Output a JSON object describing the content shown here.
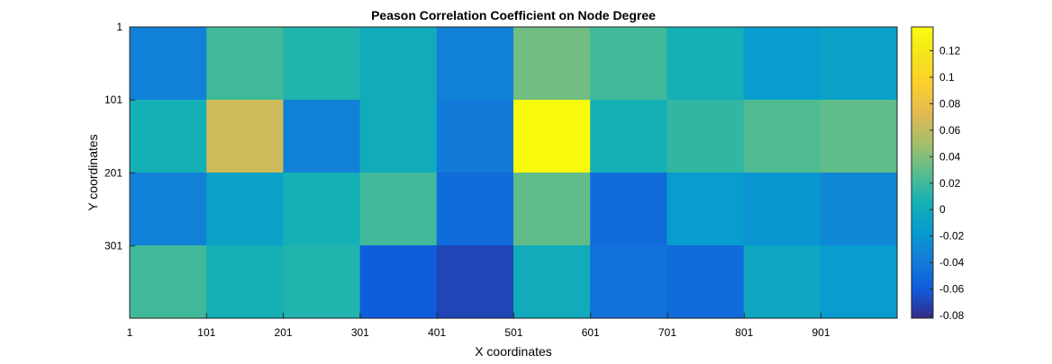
{
  "chart_data": {
    "type": "heatmap",
    "title": "Peason Correlation Coefficient on Node Degree",
    "xlabel": "X coordinates",
    "ylabel": "Y coordinates",
    "x_tick_labels": [
      "1",
      "101",
      "201",
      "301",
      "401",
      "501",
      "601",
      "701",
      "801",
      "901"
    ],
    "y_tick_labels": [
      "1",
      "101",
      "201",
      "301"
    ],
    "x_range": [
      1,
      1000
    ],
    "y_range": [
      1,
      400
    ],
    "cell_size": 100,
    "values": [
      [
        -0.035,
        0.02,
        0.01,
        0.0,
        -0.035,
        0.035,
        0.02,
        0.005,
        -0.015,
        -0.01
      ],
      [
        0.005,
        0.065,
        -0.035,
        0.0,
        -0.04,
        0.138,
        0.005,
        0.015,
        0.025,
        0.03
      ],
      [
        -0.035,
        -0.01,
        0.005,
        0.02,
        -0.05,
        0.03,
        -0.05,
        -0.015,
        -0.02,
        -0.03
      ],
      [
        0.02,
        0.005,
        0.01,
        -0.06,
        -0.07,
        0.0,
        -0.045,
        -0.05,
        -0.005,
        -0.015
      ]
    ],
    "colorbar": {
      "colormap": "parula",
      "range": [
        -0.082,
        0.138
      ],
      "ticks": [
        "0.12",
        "0.1",
        "0.08",
        "0.06",
        "0.04",
        "0.02",
        "0",
        "-0.02",
        "-0.04",
        "-0.06",
        "-0.08"
      ],
      "tick_values": [
        0.12,
        0.1,
        0.08,
        0.06,
        0.04,
        0.02,
        0,
        -0.02,
        -0.04,
        -0.06,
        -0.08
      ]
    },
    "grid": false
  }
}
